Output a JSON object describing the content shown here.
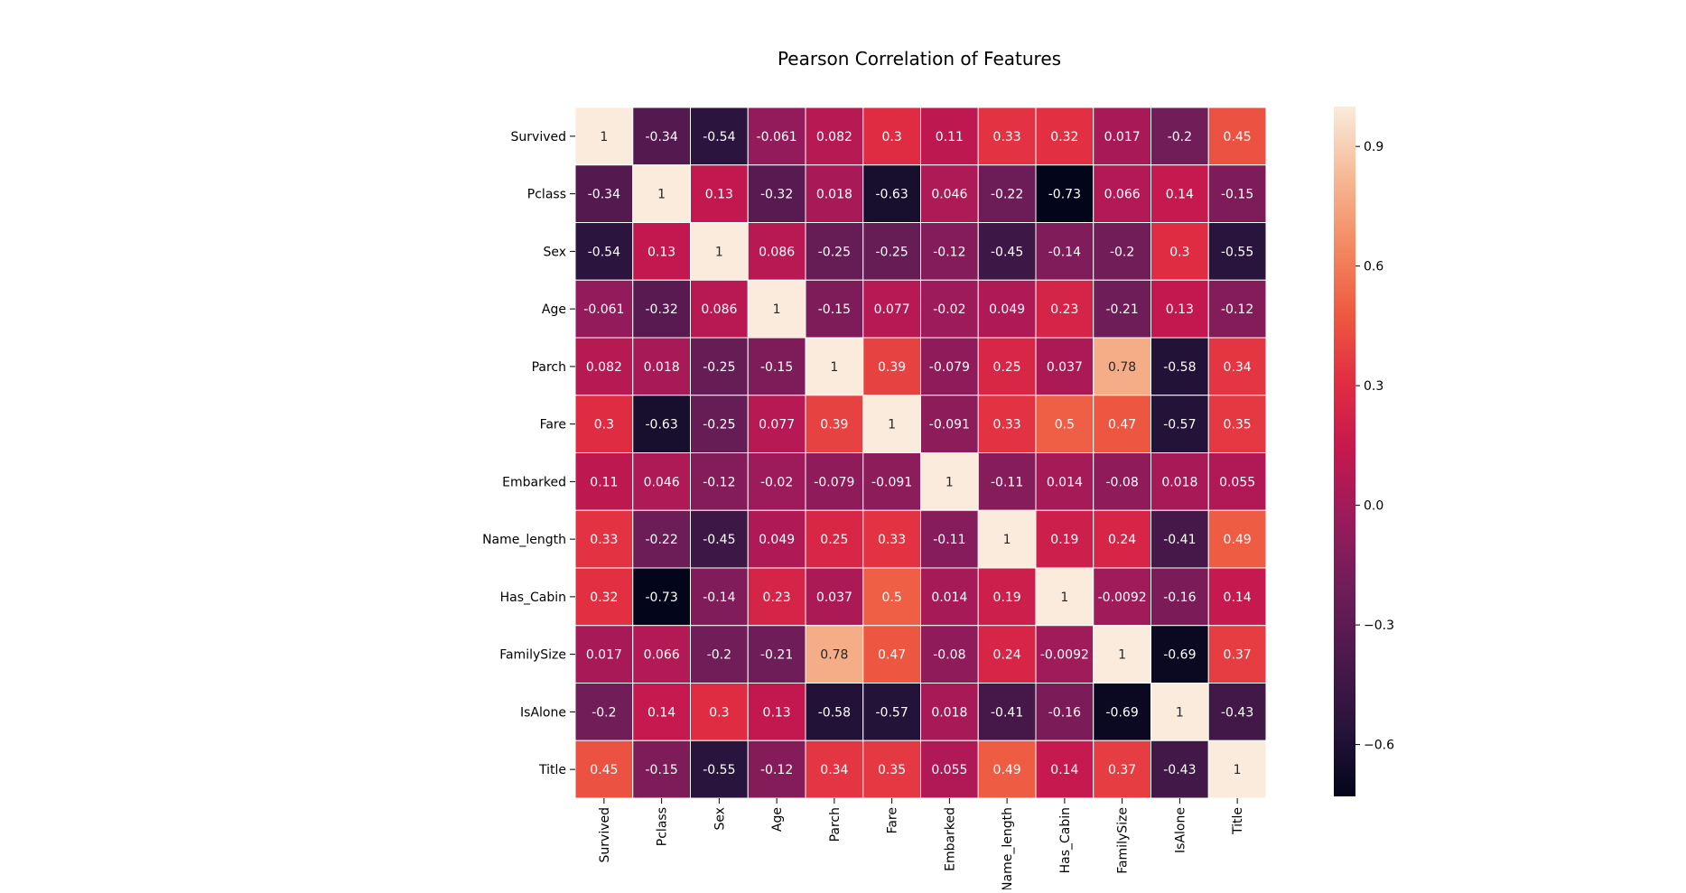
{
  "chart_data": {
    "type": "heatmap",
    "title": "Pearson Correlation of Features",
    "xlabel": "",
    "ylabel": "",
    "labels": [
      "Survived",
      "Pclass",
      "Sex",
      "Age",
      "Parch",
      "Fare",
      "Embarked",
      "Name_length",
      "Has_Cabin",
      "FamilySize",
      "IsAlone",
      "Title"
    ],
    "matrix": [
      [
        1,
        -0.34,
        -0.54,
        -0.061,
        0.082,
        0.3,
        0.11,
        0.33,
        0.32,
        0.017,
        -0.2,
        0.45
      ],
      [
        -0.34,
        1,
        0.13,
        -0.32,
        0.018,
        -0.63,
        0.046,
        -0.22,
        -0.73,
        0.066,
        0.14,
        -0.15
      ],
      [
        -0.54,
        0.13,
        1,
        0.086,
        -0.25,
        -0.25,
        -0.12,
        -0.45,
        -0.14,
        -0.2,
        0.3,
        -0.55
      ],
      [
        -0.061,
        -0.32,
        0.086,
        1,
        -0.15,
        0.077,
        -0.02,
        0.049,
        0.23,
        -0.21,
        0.13,
        -0.12
      ],
      [
        0.082,
        0.018,
        -0.25,
        -0.15,
        1,
        0.39,
        -0.079,
        0.25,
        0.037,
        0.78,
        -0.58,
        0.34
      ],
      [
        0.3,
        -0.63,
        -0.25,
        0.077,
        0.39,
        1,
        -0.091,
        0.33,
        0.5,
        0.47,
        -0.57,
        0.35
      ],
      [
        0.11,
        0.046,
        -0.12,
        -0.02,
        -0.079,
        -0.091,
        1,
        -0.11,
        0.014,
        -0.08,
        0.018,
        0.055
      ],
      [
        0.33,
        -0.22,
        -0.45,
        0.049,
        0.25,
        0.33,
        -0.11,
        1,
        0.19,
        0.24,
        -0.41,
        0.49
      ],
      [
        0.32,
        -0.73,
        -0.14,
        0.23,
        0.037,
        0.5,
        0.014,
        0.19,
        1,
        -0.0092,
        -0.16,
        0.14
      ],
      [
        0.017,
        0.066,
        -0.2,
        -0.21,
        0.78,
        0.47,
        -0.08,
        0.24,
        -0.0092,
        1,
        -0.69,
        0.37
      ],
      [
        -0.2,
        0.14,
        0.3,
        0.13,
        -0.58,
        -0.57,
        0.018,
        -0.41,
        -0.16,
        -0.69,
        1,
        -0.43
      ],
      [
        0.45,
        -0.15,
        -0.55,
        -0.12,
        0.34,
        0.35,
        0.055,
        0.49,
        0.14,
        0.37,
        -0.43,
        1
      ]
    ],
    "color_range": [
      -0.73,
      1
    ],
    "colormap": "rocket",
    "colorbar_ticks": [
      0.9,
      0.6,
      0.3,
      0.0,
      -0.3,
      -0.6
    ],
    "colorbar_tick_labels": [
      "0.9",
      "0.6",
      "0.3",
      "0.0",
      "−0.3",
      "−0.6"
    ],
    "grid_lines": true,
    "grid_color": "#ffffff",
    "annotations": true
  }
}
